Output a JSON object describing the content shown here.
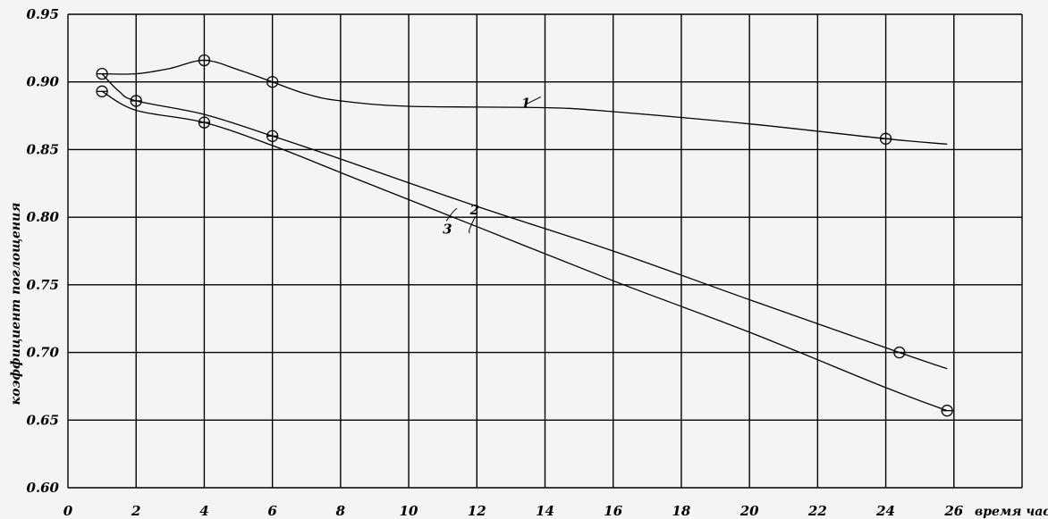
{
  "chart_data": {
    "type": "line",
    "title": "",
    "xlabel": "время час",
    "ylabel": "коэффициент поглощения",
    "xlim": [
      0,
      28
    ],
    "ylim": [
      0.6,
      0.95
    ],
    "x_ticks": [
      {
        "value": 0,
        "label": "0"
      },
      {
        "value": 2,
        "label": "2"
      },
      {
        "value": 4,
        "label": "4"
      },
      {
        "value": 6,
        "label": "6"
      },
      {
        "value": 8,
        "label": "8"
      },
      {
        "value": 10,
        "label": "10"
      },
      {
        "value": 12,
        "label": "12"
      },
      {
        "value": 14,
        "label": "14"
      },
      {
        "value": 16,
        "label": "16"
      },
      {
        "value": 18,
        "label": "18"
      },
      {
        "value": 20,
        "label": "20"
      },
      {
        "value": 22,
        "label": "22"
      },
      {
        "value": 24,
        "label": "24"
      },
      {
        "value": 26,
        "label": "26"
      }
    ],
    "y_ticks": [
      {
        "value": 0.6,
        "label": "0.60"
      },
      {
        "value": 0.65,
        "label": "0.65"
      },
      {
        "value": 0.7,
        "label": "0.70"
      },
      {
        "value": 0.75,
        "label": "0.75"
      },
      {
        "value": 0.8,
        "label": "0.80"
      },
      {
        "value": 0.85,
        "label": "0.85"
      },
      {
        "value": 0.9,
        "label": "0.90"
      },
      {
        "value": 0.95,
        "label": "0.95"
      }
    ],
    "grid": true,
    "series": [
      {
        "name": "1",
        "markers": [
          {
            "x": 1,
            "y": 0.906
          },
          {
            "x": 4,
            "y": 0.916
          },
          {
            "x": 6,
            "y": 0.9
          },
          {
            "x": 24,
            "y": 0.858
          }
        ],
        "curve": [
          {
            "x": 1,
            "y": 0.906
          },
          {
            "x": 2,
            "y": 0.906
          },
          {
            "x": 3,
            "y": 0.91
          },
          {
            "x": 4,
            "y": 0.916
          },
          {
            "x": 5,
            "y": 0.909
          },
          {
            "x": 6,
            "y": 0.9
          },
          {
            "x": 7,
            "y": 0.891
          },
          {
            "x": 8,
            "y": 0.886
          },
          {
            "x": 10,
            "y": 0.882
          },
          {
            "x": 14,
            "y": 0.881
          },
          {
            "x": 16,
            "y": 0.878
          },
          {
            "x": 20,
            "y": 0.869
          },
          {
            "x": 24,
            "y": 0.858
          },
          {
            "x": 25.8,
            "y": 0.854
          }
        ]
      },
      {
        "name": "2",
        "markers": [
          {
            "x": 2,
            "y": 0.886
          },
          {
            "x": 6,
            "y": 0.86
          },
          {
            "x": 24.4,
            "y": 0.7
          }
        ],
        "curve": [
          {
            "x": 1,
            "y": 0.906
          },
          {
            "x": 1.5,
            "y": 0.893
          },
          {
            "x": 2,
            "y": 0.886
          },
          {
            "x": 4,
            "y": 0.876
          },
          {
            "x": 6,
            "y": 0.86
          },
          {
            "x": 8,
            "y": 0.843
          },
          {
            "x": 12,
            "y": 0.808
          },
          {
            "x": 16,
            "y": 0.775
          },
          {
            "x": 20,
            "y": 0.739
          },
          {
            "x": 24.4,
            "y": 0.7
          },
          {
            "x": 25.8,
            "y": 0.688
          }
        ]
      },
      {
        "name": "3",
        "markers": [
          {
            "x": 1,
            "y": 0.893
          },
          {
            "x": 4,
            "y": 0.87
          },
          {
            "x": 25.8,
            "y": 0.657
          }
        ],
        "curve": [
          {
            "x": 1,
            "y": 0.893
          },
          {
            "x": 2,
            "y": 0.879
          },
          {
            "x": 4,
            "y": 0.87
          },
          {
            "x": 6,
            "y": 0.853
          },
          {
            "x": 8,
            "y": 0.833
          },
          {
            "x": 12,
            "y": 0.793
          },
          {
            "x": 16,
            "y": 0.753
          },
          {
            "x": 20,
            "y": 0.715
          },
          {
            "x": 24,
            "y": 0.674
          },
          {
            "x": 25.8,
            "y": 0.657
          }
        ]
      }
    ],
    "annotations": [
      {
        "text": "1",
        "x": 13.3,
        "y": 0.881
      },
      {
        "text": "2",
        "x": 11.8,
        "y": 0.802
      },
      {
        "text": "3",
        "x": 11.0,
        "y": 0.788
      }
    ]
  }
}
